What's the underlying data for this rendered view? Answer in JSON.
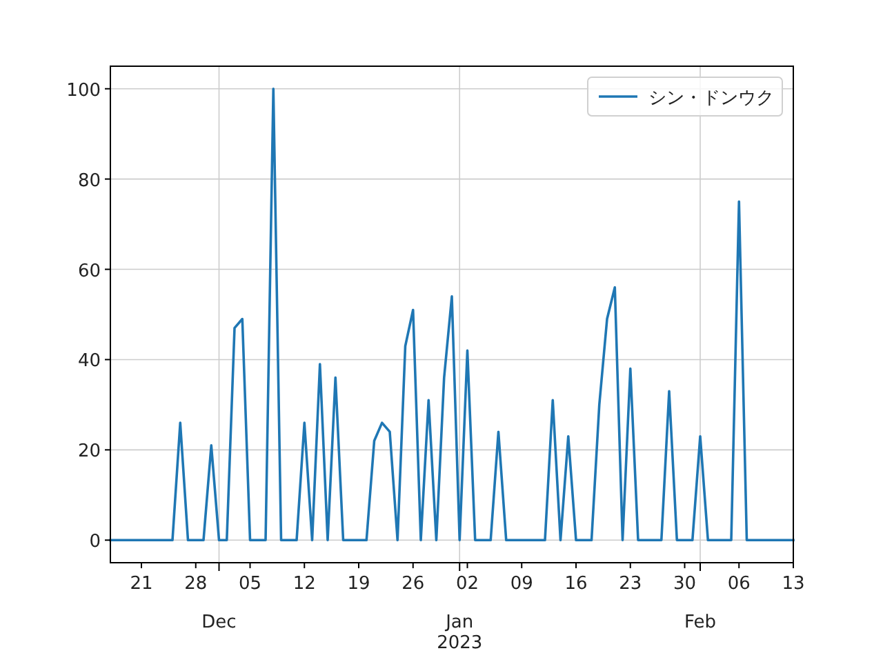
{
  "chart_data": {
    "type": "line",
    "x": [
      "2022-11-17",
      "2022-11-18",
      "2022-11-19",
      "2022-11-20",
      "2022-11-21",
      "2022-11-22",
      "2022-11-23",
      "2022-11-24",
      "2022-11-25",
      "2022-11-26",
      "2022-11-27",
      "2022-11-28",
      "2022-11-29",
      "2022-11-30",
      "2022-12-01",
      "2022-12-02",
      "2022-12-03",
      "2022-12-04",
      "2022-12-05",
      "2022-12-06",
      "2022-12-07",
      "2022-12-08",
      "2022-12-09",
      "2022-12-10",
      "2022-12-11",
      "2022-12-12",
      "2022-12-13",
      "2022-12-14",
      "2022-12-15",
      "2022-12-16",
      "2022-12-17",
      "2022-12-18",
      "2022-12-19",
      "2022-12-20",
      "2022-12-21",
      "2022-12-22",
      "2022-12-23",
      "2022-12-24",
      "2022-12-25",
      "2022-12-26",
      "2022-12-27",
      "2022-12-28",
      "2022-12-29",
      "2022-12-30",
      "2022-12-31",
      "2023-01-01",
      "2023-01-02",
      "2023-01-03",
      "2023-01-04",
      "2023-01-05",
      "2023-01-06",
      "2023-01-07",
      "2023-01-08",
      "2023-01-09",
      "2023-01-10",
      "2023-01-11",
      "2023-01-12",
      "2023-01-13",
      "2023-01-14",
      "2023-01-15",
      "2023-01-16",
      "2023-01-17",
      "2023-01-18",
      "2023-01-19",
      "2023-01-20",
      "2023-01-21",
      "2023-01-22",
      "2023-01-23",
      "2023-01-24",
      "2023-01-25",
      "2023-01-26",
      "2023-01-27",
      "2023-01-28",
      "2023-01-29",
      "2023-01-30",
      "2023-01-31",
      "2023-02-01",
      "2023-02-02",
      "2023-02-03",
      "2023-02-04",
      "2023-02-05",
      "2023-02-06",
      "2023-02-07",
      "2023-02-08",
      "2023-02-09",
      "2023-02-10",
      "2023-02-11",
      "2023-02-12",
      "2023-02-13"
    ],
    "series": [
      {
        "name": "シン・ドンウク",
        "color": "#1f77b4",
        "values": [
          0,
          0,
          0,
          0,
          0,
          0,
          0,
          0,
          0,
          26,
          0,
          0,
          0,
          21,
          0,
          0,
          47,
          49,
          0,
          0,
          0,
          100,
          0,
          0,
          0,
          26,
          0,
          39,
          0,
          36,
          0,
          0,
          0,
          0,
          22,
          26,
          24,
          0,
          43,
          51,
          0,
          31,
          0,
          36,
          54,
          0,
          42,
          0,
          0,
          0,
          24,
          0,
          0,
          0,
          0,
          0,
          0,
          31,
          0,
          23,
          0,
          0,
          0,
          30,
          49,
          56,
          0,
          38,
          0,
          0,
          0,
          0,
          33,
          0,
          0,
          0,
          23,
          0,
          0,
          0,
          0,
          75,
          0,
          0,
          0,
          0,
          0,
          0,
          0
        ]
      }
    ],
    "xlim": [
      "2022-11-17",
      "2023-02-13"
    ],
    "xticks": [
      {
        "value": "2022-11-21",
        "label": "21"
      },
      {
        "value": "2022-11-28",
        "label": "28"
      },
      {
        "value": "2022-12-01",
        "label": null
      },
      {
        "value": "2022-12-05",
        "label": "05"
      },
      {
        "value": "2022-12-12",
        "label": "12"
      },
      {
        "value": "2022-12-19",
        "label": "19"
      },
      {
        "value": "2022-12-26",
        "label": "26"
      },
      {
        "value": "2023-01-01",
        "label": null
      },
      {
        "value": "2023-01-02",
        "label": "02"
      },
      {
        "value": "2023-01-09",
        "label": "09"
      },
      {
        "value": "2023-01-16",
        "label": "16"
      },
      {
        "value": "2023-01-23",
        "label": "23"
      },
      {
        "value": "2023-01-30",
        "label": "30"
      },
      {
        "value": "2023-02-01",
        "label": null
      },
      {
        "value": "2023-02-06",
        "label": "06"
      },
      {
        "value": "2023-02-13",
        "label": "13"
      }
    ],
    "ylim": [
      -5,
      105
    ],
    "yticks": [
      0,
      20,
      40,
      60,
      80,
      100
    ],
    "annotations": [
      "Dec",
      "Jan\n2023",
      "Feb"
    ],
    "grid": true,
    "legend": "top right",
    "line_style": "solid",
    "marker": "none"
  }
}
